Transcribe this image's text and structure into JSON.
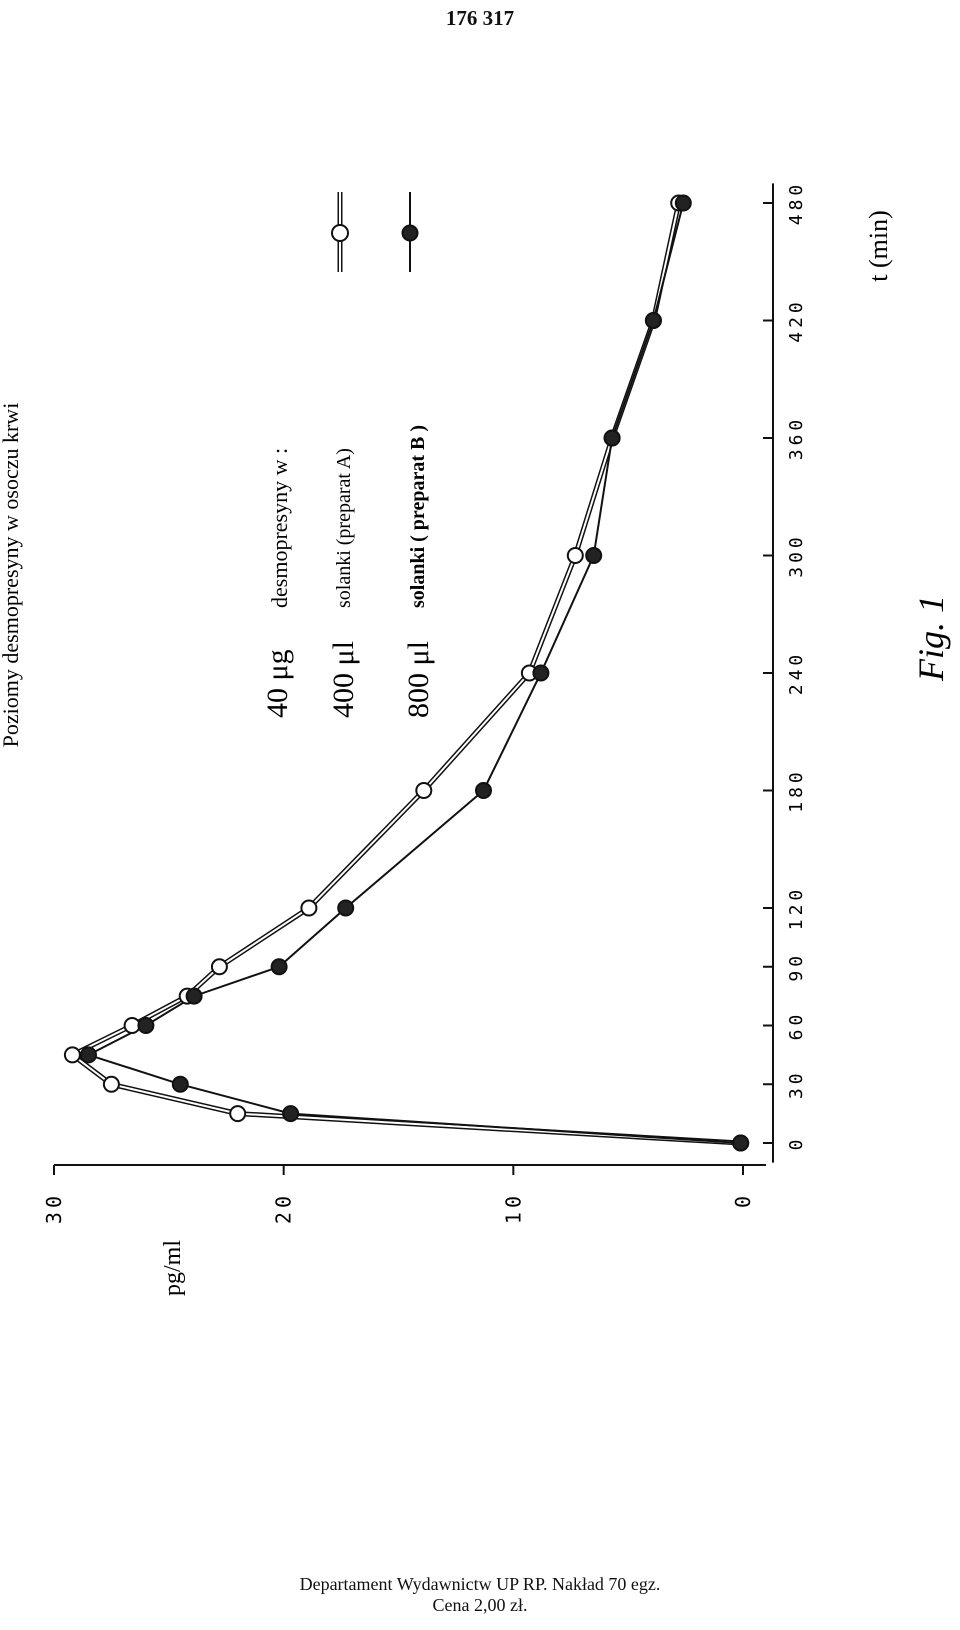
{
  "page": {
    "number": "176 317",
    "figure_label": "Fig. 1"
  },
  "footer": {
    "line1": "Departament Wydawnictw UP RP. Nakład 70 egz.",
    "line2": "Cena 2,00 zł."
  },
  "chart_data": {
    "type": "line",
    "title": "Poziomy desmopresyny w osoczu krwi",
    "xlabel": "t (min)",
    "ylabel": "pg/ml",
    "x": [
      0,
      15,
      30,
      45,
      60,
      75,
      90,
      120,
      180,
      240,
      300,
      360,
      420,
      480
    ],
    "xticks": [
      0,
      30,
      60,
      90,
      120,
      180,
      240,
      300,
      360,
      420,
      480
    ],
    "xtick_labels": [
      "0",
      "30",
      "60",
      "90",
      "120",
      "180",
      "240",
      "300",
      "360",
      "420",
      "480"
    ],
    "yticks": [
      0,
      10,
      20,
      30
    ],
    "ytick_labels": [
      "0",
      "10",
      "20",
      "30"
    ],
    "xlim": [
      -10,
      490
    ],
    "ylim": [
      -1,
      30
    ],
    "orientation": "rotated 90° counter-clockwise",
    "grid": false,
    "legend": {
      "position": "upper-middle",
      "heading_amount": "40 μg",
      "heading_text": "desmopresyny w :",
      "entries": [
        {
          "amount": "400 μl",
          "text": "solanki (preparat A)",
          "series": 0
        },
        {
          "amount": "800 μl",
          "text": "solanki ( preparat B )",
          "series": 1
        }
      ]
    },
    "series": [
      {
        "marker": "open-circle",
        "color": "#111111",
        "values": [
          0.1,
          22.0,
          27.5,
          29.2,
          26.6,
          24.2,
          22.8,
          18.9,
          13.9,
          9.3,
          7.3,
          5.7,
          3.9,
          2.8
        ]
      },
      {
        "marker": "filled-circle",
        "color": "#111111",
        "values": [
          0.1,
          19.7,
          24.5,
          28.5,
          26.0,
          23.9,
          20.2,
          17.3,
          11.3,
          8.8,
          6.5,
          5.7,
          3.9,
          2.6
        ]
      }
    ]
  }
}
